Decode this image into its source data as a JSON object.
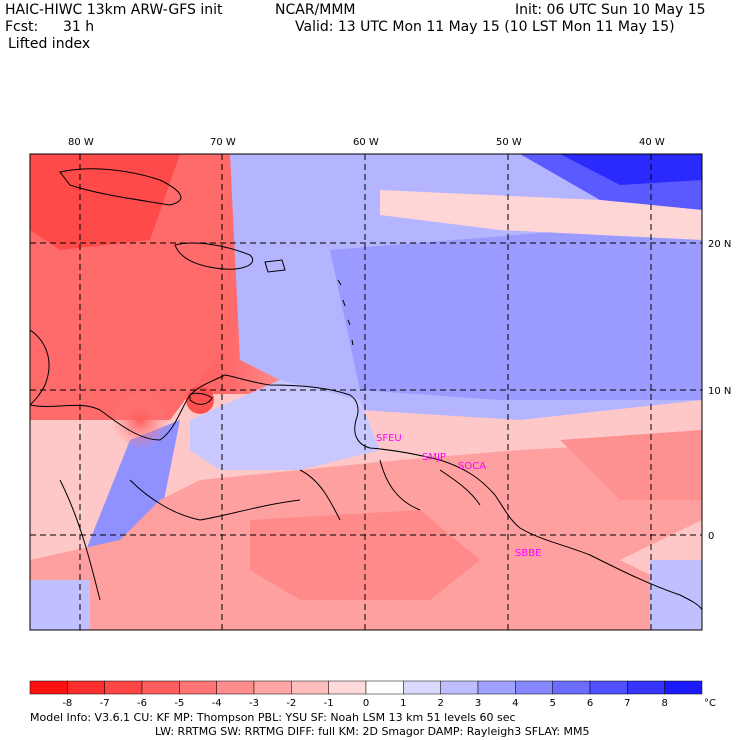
{
  "header": {
    "model_title": "HAIC-HIWC 13km ARW-GFS init",
    "org": "NCAR/MMM",
    "init": "Init: 06 UTC Sun 10 May 15",
    "fcst_label": "Fcst:",
    "fcst_value": "31 h",
    "valid": "Valid: 13 UTC Mon 11 May 15 (10 LST Mon 11 May 15)",
    "field": "Lifted index"
  },
  "map": {
    "lon_labels": [
      "80 W",
      "70 W",
      "60 W",
      "50 W",
      "40 W"
    ],
    "lat_labels": [
      "20 N",
      "10 N",
      "0"
    ],
    "stations": [
      "SFEU",
      "SMJP",
      "SOCA",
      "SBBE"
    ],
    "colors": {
      "coast": "#000000",
      "station": "#ff00ff"
    }
  },
  "colorbar": {
    "ticks": [
      "-8",
      "-7",
      "-6",
      "-5",
      "-4",
      "-3",
      "-2",
      "-1",
      "0",
      "1",
      "2",
      "3",
      "4",
      "5",
      "6",
      "7",
      "8"
    ],
    "unit": "°C",
    "colors": [
      "#ff1111",
      "#ff2e2e",
      "#ff4646",
      "#ff5e5e",
      "#ff7575",
      "#ff8c8c",
      "#ffa5a5",
      "#ffbdbd",
      "#ffdada",
      "#ffffff",
      "#dadaff",
      "#bdbdff",
      "#a1a1ff",
      "#8686ff",
      "#6c6cff",
      "#5050ff",
      "#3535ff",
      "#1a1aff"
    ]
  },
  "footer": {
    "line1": "Model Info: V3.6.1     CU: KF       MP: Thompson      PBL: YSU        SF: Noah LSM      13 km    51 levels   60 sec",
    "line2": "LW: RRTMG    SW: RRTMG   DIFF: full    KM: 2D Smagor DAMP: Rayleigh3   SFLAY: MM5"
  }
}
